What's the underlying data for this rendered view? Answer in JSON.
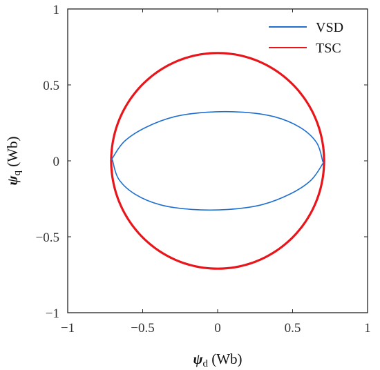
{
  "chart_data": {
    "type": "line",
    "title": "",
    "xlabel": {
      "symbol": "ψ",
      "subscript": "d",
      "unit": " (Wb)"
    },
    "ylabel": {
      "symbol": "ψ",
      "subscript": "q",
      "unit": " (Wb)"
    },
    "xlim": [
      -1,
      1
    ],
    "ylim": [
      -1,
      1
    ],
    "xticks": [
      -1,
      -0.5,
      0,
      0.5,
      1
    ],
    "yticks": [
      -1,
      -0.5,
      0,
      0.5,
      1
    ],
    "xtick_labels": [
      "−1",
      "−0.5",
      "0",
      "0.5",
      "1"
    ],
    "ytick_labels": [
      "−1",
      "−0.5",
      "0",
      "0.5",
      "1"
    ],
    "grid": false,
    "legend_position": "top-right",
    "series": [
      {
        "name": "VSD",
        "color": "#1f6fd0",
        "shape": "tilted ellipse",
        "points": [
          [
            0.7,
            0.0
          ],
          [
            0.66,
            0.12
          ],
          [
            0.55,
            0.22
          ],
          [
            0.38,
            0.29
          ],
          [
            0.17,
            0.32
          ],
          [
            -0.07,
            0.32
          ],
          [
            -0.29,
            0.29
          ],
          [
            -0.48,
            0.22
          ],
          [
            -0.62,
            0.13
          ],
          [
            -0.7,
            0.02
          ],
          [
            -0.7,
            0.0
          ],
          [
            -0.66,
            -0.12
          ],
          [
            -0.55,
            -0.22
          ],
          [
            -0.38,
            -0.29
          ],
          [
            -0.17,
            -0.32
          ],
          [
            0.07,
            -0.32
          ],
          [
            0.29,
            -0.29
          ],
          [
            0.48,
            -0.22
          ],
          [
            0.62,
            -0.13
          ],
          [
            0.7,
            -0.02
          ]
        ]
      },
      {
        "name": "TSC",
        "color": "#e8161b",
        "shape": "circle",
        "radius": 0.71,
        "points": [
          [
            0.71,
            0.0
          ],
          [
            0.5,
            0.5
          ],
          [
            0.0,
            0.71
          ],
          [
            -0.5,
            0.5
          ],
          [
            -0.71,
            0.0
          ],
          [
            -0.5,
            -0.5
          ],
          [
            0.0,
            -0.71
          ],
          [
            0.5,
            -0.5
          ]
        ]
      }
    ]
  }
}
